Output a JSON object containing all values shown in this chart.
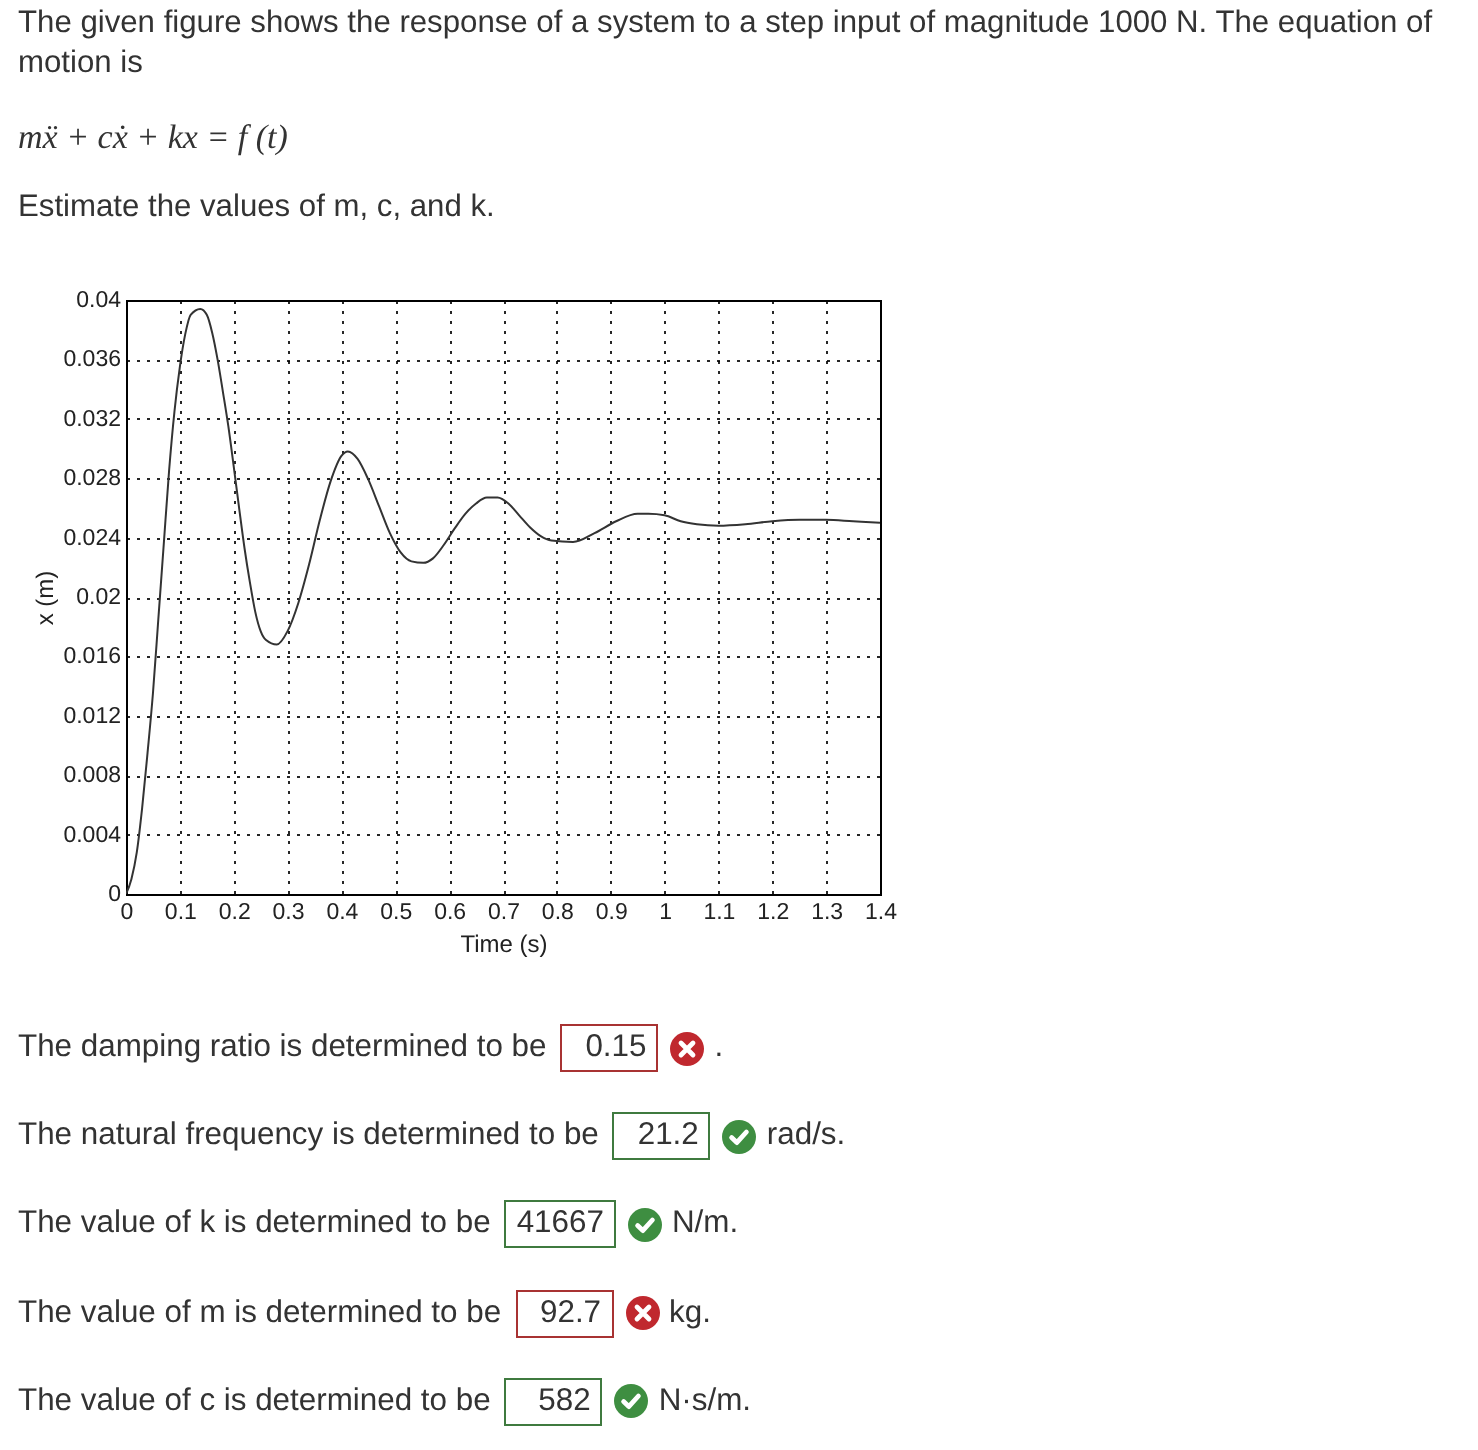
{
  "chart_data": {
    "type": "line",
    "title": "The given figure shows the response of a system to a step input of magnitude 1000 N. The equation of motion is",
    "subtitle": "mẍ + cẋ + kx = f (t)",
    "xlabel": "Time (s)",
    "ylabel": "x (m)",
    "x": [
      0,
      0.01,
      0.02,
      0.03,
      0.04,
      0.05,
      0.06,
      0.07,
      0.08,
      0.09,
      0.1,
      0.11,
      0.12,
      0.138,
      0.15,
      0.16,
      0.17,
      0.18,
      0.19,
      0.2,
      0.21,
      0.22,
      0.23,
      0.24,
      0.25,
      0.26,
      0.28,
      0.3,
      0.32,
      0.34,
      0.36,
      0.38,
      0.4,
      0.412,
      0.43,
      0.45,
      0.47,
      0.49,
      0.51,
      0.53,
      0.552,
      0.57,
      0.59,
      0.61,
      0.63,
      0.65,
      0.67,
      0.69,
      0.71,
      0.73,
      0.75,
      0.77,
      0.79,
      0.83,
      0.87,
      0.91,
      0.95,
      0.97,
      1.0,
      1.03,
      1.06,
      1.1,
      1.15,
      1.2,
      1.25,
      1.3,
      1.35,
      1.4
    ],
    "series": [
      {
        "color": "#333333",
        "values": [
          0,
          0.001,
          0.0028,
          0.0058,
          0.0095,
          0.0135,
          0.0185,
          0.0235,
          0.0285,
          0.0325,
          0.0355,
          0.0377,
          0.039,
          0.0394,
          0.039,
          0.0378,
          0.036,
          0.0338,
          0.0315,
          0.0288,
          0.026,
          0.0233,
          0.021,
          0.019,
          0.0177,
          0.0171,
          0.0168,
          0.0177,
          0.0196,
          0.0222,
          0.0252,
          0.0278,
          0.0295,
          0.0298,
          0.0293,
          0.0279,
          0.0261,
          0.0243,
          0.023,
          0.0224,
          0.0223,
          0.0226,
          0.0235,
          0.0246,
          0.0256,
          0.0263,
          0.0267,
          0.0267,
          0.0263,
          0.0255,
          0.0247,
          0.0241,
          0.0238,
          0.0237,
          0.0243,
          0.0251,
          0.0256,
          0.0256,
          0.0255,
          0.0251,
          0.0249,
          0.0248,
          0.0249,
          0.0251,
          0.0252,
          0.0252,
          0.0251,
          0.025
        ]
      }
    ],
    "xlim": [
      0,
      1.4
    ],
    "xticks": [
      0,
      0.1,
      0.2,
      0.3,
      0.4,
      0.5,
      0.6,
      0.7,
      0.8,
      0.9,
      1,
      1.1,
      1.2,
      1.3,
      1.4
    ],
    "ylim": [
      0,
      0.04
    ],
    "yticks": [
      0,
      0.004,
      0.008,
      0.012,
      0.016,
      0.02,
      0.024,
      0.028,
      0.032,
      0.036,
      0.04
    ],
    "grid": true,
    "annotations": [
      "Estimate the values of m, c, and k.",
      "The damping ratio is determined to be",
      "0.15",
      ".",
      "The natural frequency is determined to be",
      "21.2",
      "rad/s.",
      "The value of k is determined to be",
      "41667",
      "N/m.",
      "The value of m is determined to be",
      "92.7",
      "kg.",
      "The value of c is determined to be",
      "582",
      "N·s/m."
    ]
  }
}
